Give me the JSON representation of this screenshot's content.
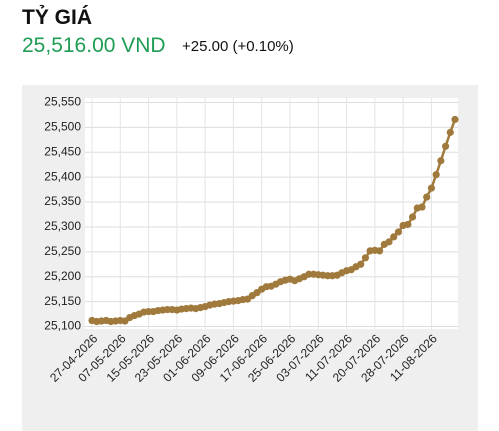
{
  "header": {
    "title": "TỶ GIÁ",
    "price": "25,516.00 VND",
    "change": "+25.00 (+0.10%)"
  },
  "chart_data": {
    "type": "line",
    "color": "#a07a3c",
    "grid": true,
    "categories": [
      "27-04-2026",
      null,
      null,
      null,
      null,
      null,
      "07-05-2026",
      null,
      null,
      null,
      null,
      null,
      "15-05-2026",
      null,
      null,
      null,
      null,
      null,
      "23-05-2026",
      null,
      null,
      null,
      null,
      null,
      "01-06-2026",
      null,
      null,
      null,
      null,
      null,
      "09-06-2026",
      null,
      null,
      null,
      null,
      null,
      "17-06-2026",
      null,
      null,
      null,
      null,
      null,
      "25-06-2026",
      null,
      null,
      null,
      null,
      null,
      "03-07-2026",
      null,
      null,
      null,
      null,
      null,
      "11-07-2026",
      null,
      null,
      null,
      null,
      null,
      "20-07-2026",
      null,
      null,
      null,
      null,
      null,
      "28-07-2026",
      null,
      null,
      null,
      null,
      null,
      "11-08-2026",
      null,
      null,
      null,
      null,
      null
    ],
    "values": [
      25112,
      25110,
      25111,
      25112,
      25110,
      25111,
      25112,
      25111,
      25118,
      25122,
      25125,
      25129,
      25130,
      25130,
      25132,
      25133,
      25134,
      25134,
      25133,
      25135,
      25136,
      25137,
      25136,
      25138,
      25140,
      25143,
      25145,
      25146,
      25148,
      25150,
      25151,
      25152,
      25154,
      25155,
      25162,
      25168,
      25175,
      25180,
      25181,
      25185,
      25190,
      25193,
      25195,
      25192,
      25196,
      25200,
      25205,
      25205,
      25204,
      25203,
      25202,
      25202,
      25203,
      25208,
      25212,
      25214,
      25220,
      25225,
      25238,
      25252,
      25253,
      25252,
      25265,
      25270,
      25280,
      25290,
      25303,
      25305,
      25320,
      25338,
      25340,
      25360,
      25378,
      25405,
      25433,
      25462,
      25490,
      25516
    ],
    "ylim": [
      25095,
      25555
    ],
    "yticks": [
      {
        "value": 25100,
        "label": "25,100"
      },
      {
        "value": 25150,
        "label": "25,150"
      },
      {
        "value": 25200,
        "label": "25,200"
      },
      {
        "value": 25250,
        "label": "25,250"
      },
      {
        "value": 25300,
        "label": "25,300"
      },
      {
        "value": 25350,
        "label": "25,350"
      },
      {
        "value": 25400,
        "label": "25,400"
      },
      {
        "value": 25450,
        "label": "25,450"
      },
      {
        "value": 25500,
        "label": "25,500"
      },
      {
        "value": 25550,
        "label": "25,550"
      }
    ]
  }
}
